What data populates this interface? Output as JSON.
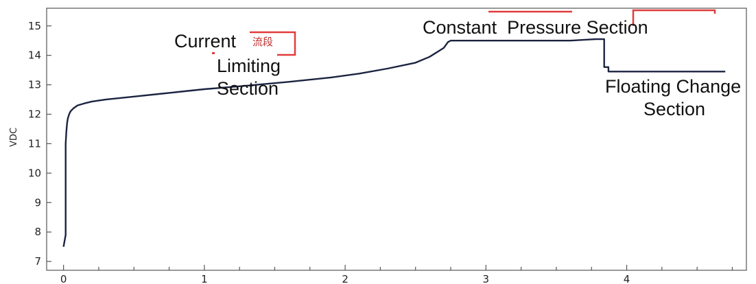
{
  "chart_data": {
    "type": "line",
    "ylabel": "VDC",
    "xlabel": "",
    "xlim": [
      -0.12,
      4.85
    ],
    "ylim": [
      6.7,
      15.6
    ],
    "x_ticks": [
      0,
      1,
      2,
      3,
      4
    ],
    "y_ticks": [
      7,
      8,
      9,
      10,
      11,
      12,
      13,
      14,
      15
    ],
    "line_color": "#1b2340",
    "grid": false,
    "series": [
      {
        "values_x": [
          0.0,
          0.015,
          0.015,
          0.02,
          0.025,
          0.03,
          0.04,
          0.05,
          0.07,
          0.1,
          0.15,
          0.2,
          0.3,
          0.5,
          0.7,
          1.0,
          1.3,
          1.6,
          1.9,
          2.1,
          2.3,
          2.5,
          2.6,
          2.7,
          2.73,
          2.75,
          3.0,
          3.3,
          3.6,
          3.78,
          3.84,
          3.84,
          3.87,
          3.87,
          4.1,
          4.4,
          4.7
        ],
        "values_y": [
          7.5,
          7.9,
          11.0,
          11.4,
          11.7,
          11.85,
          12.0,
          12.1,
          12.2,
          12.3,
          12.37,
          12.43,
          12.5,
          12.6,
          12.7,
          12.85,
          12.97,
          13.1,
          13.25,
          13.38,
          13.55,
          13.75,
          13.95,
          14.25,
          14.45,
          14.5,
          14.5,
          14.5,
          14.5,
          14.55,
          14.55,
          13.6,
          13.6,
          13.45,
          13.45,
          13.45,
          13.45
        ]
      }
    ],
    "annotations": [
      {
        "text": "Current",
        "lines": [
          "Current",
          "Limiting",
          "Section"
        ]
      },
      {
        "text": "Constant  Pressure Section"
      },
      {
        "text": "Floating Change Section",
        "lines": [
          "Floating Change",
          "Section"
        ]
      }
    ],
    "highlight_color": "#e23b3b",
    "cn_fragment": "流段"
  }
}
